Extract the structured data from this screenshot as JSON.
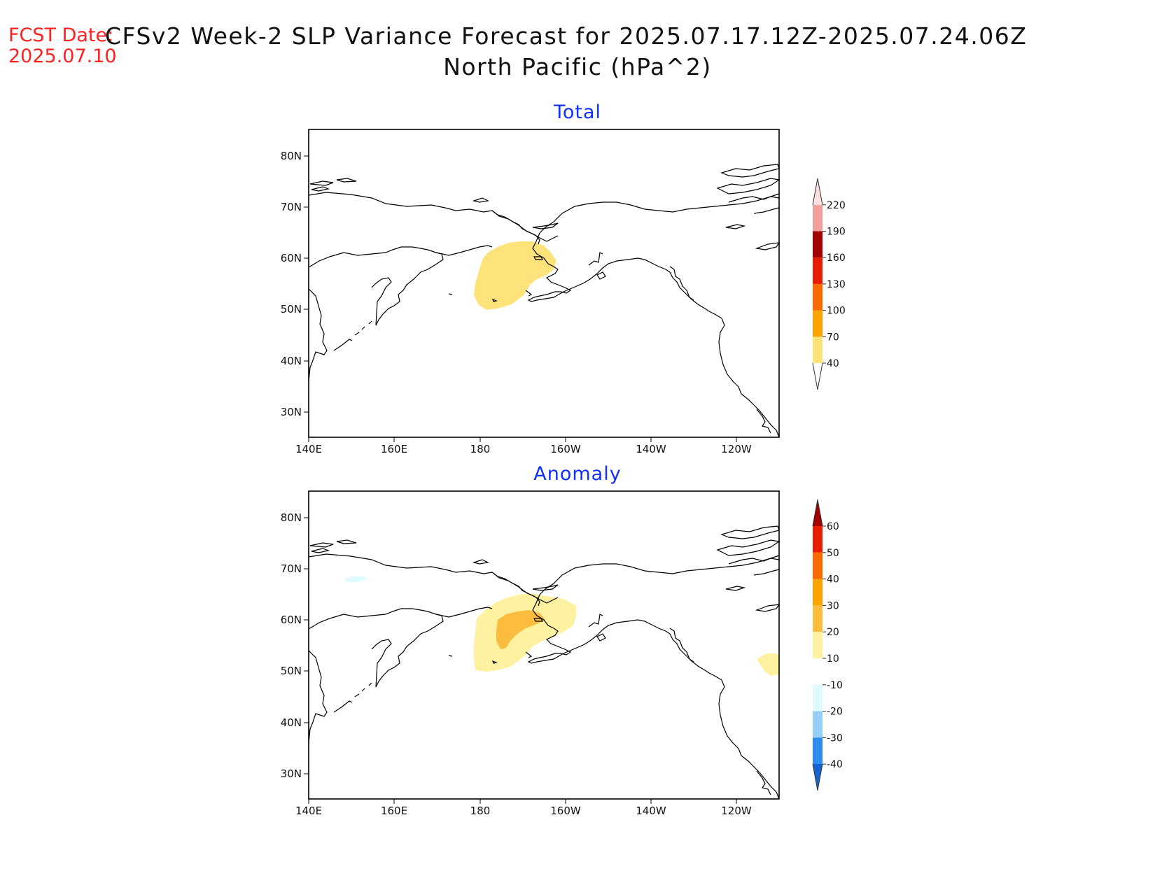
{
  "header": {
    "fcst_label": "FCST Date:",
    "fcst_date": "2025.07.10",
    "title": "CFSv2 Week-2 SLP Variance Forecast for 2025.07.17.12Z-2025.07.24.06Z",
    "subtitle": "North Pacific (hPa^2)"
  },
  "panels": [
    {
      "title": "Total",
      "lat_ticks": [
        "80N",
        "70N",
        "60N",
        "50N",
        "40N",
        "30N"
      ],
      "lon_ticks": [
        "140E",
        "160E",
        "180",
        "160W",
        "140W",
        "120W"
      ],
      "colorbar": {
        "levels": [
          "40",
          "70",
          "100",
          "130",
          "160",
          "190",
          "220"
        ],
        "colors": [
          "#fde37a",
          "#fca300",
          "#fd6a00",
          "#ea1c00",
          "#a30000",
          "#f2a19e",
          "#fde0df"
        ]
      }
    },
    {
      "title": "Anomaly",
      "lat_ticks": [
        "80N",
        "70N",
        "60N",
        "50N",
        "40N",
        "30N"
      ],
      "lon_ticks": [
        "140E",
        "160E",
        "180",
        "160W",
        "140W",
        "120W"
      ],
      "colorbar": {
        "levels": [
          "60",
          "50",
          "40",
          "30",
          "20",
          "10",
          "-10",
          "-20",
          "-30",
          "-40"
        ],
        "colors": [
          "#a30000",
          "#e81c00",
          "#fd6a00",
          "#fca300",
          "#fcbc3d",
          "#fef2a0",
          "#ffffff",
          "#e0fbff",
          "#95cff8",
          "#2d8cf0",
          "#1763d0"
        ]
      }
    }
  ]
}
